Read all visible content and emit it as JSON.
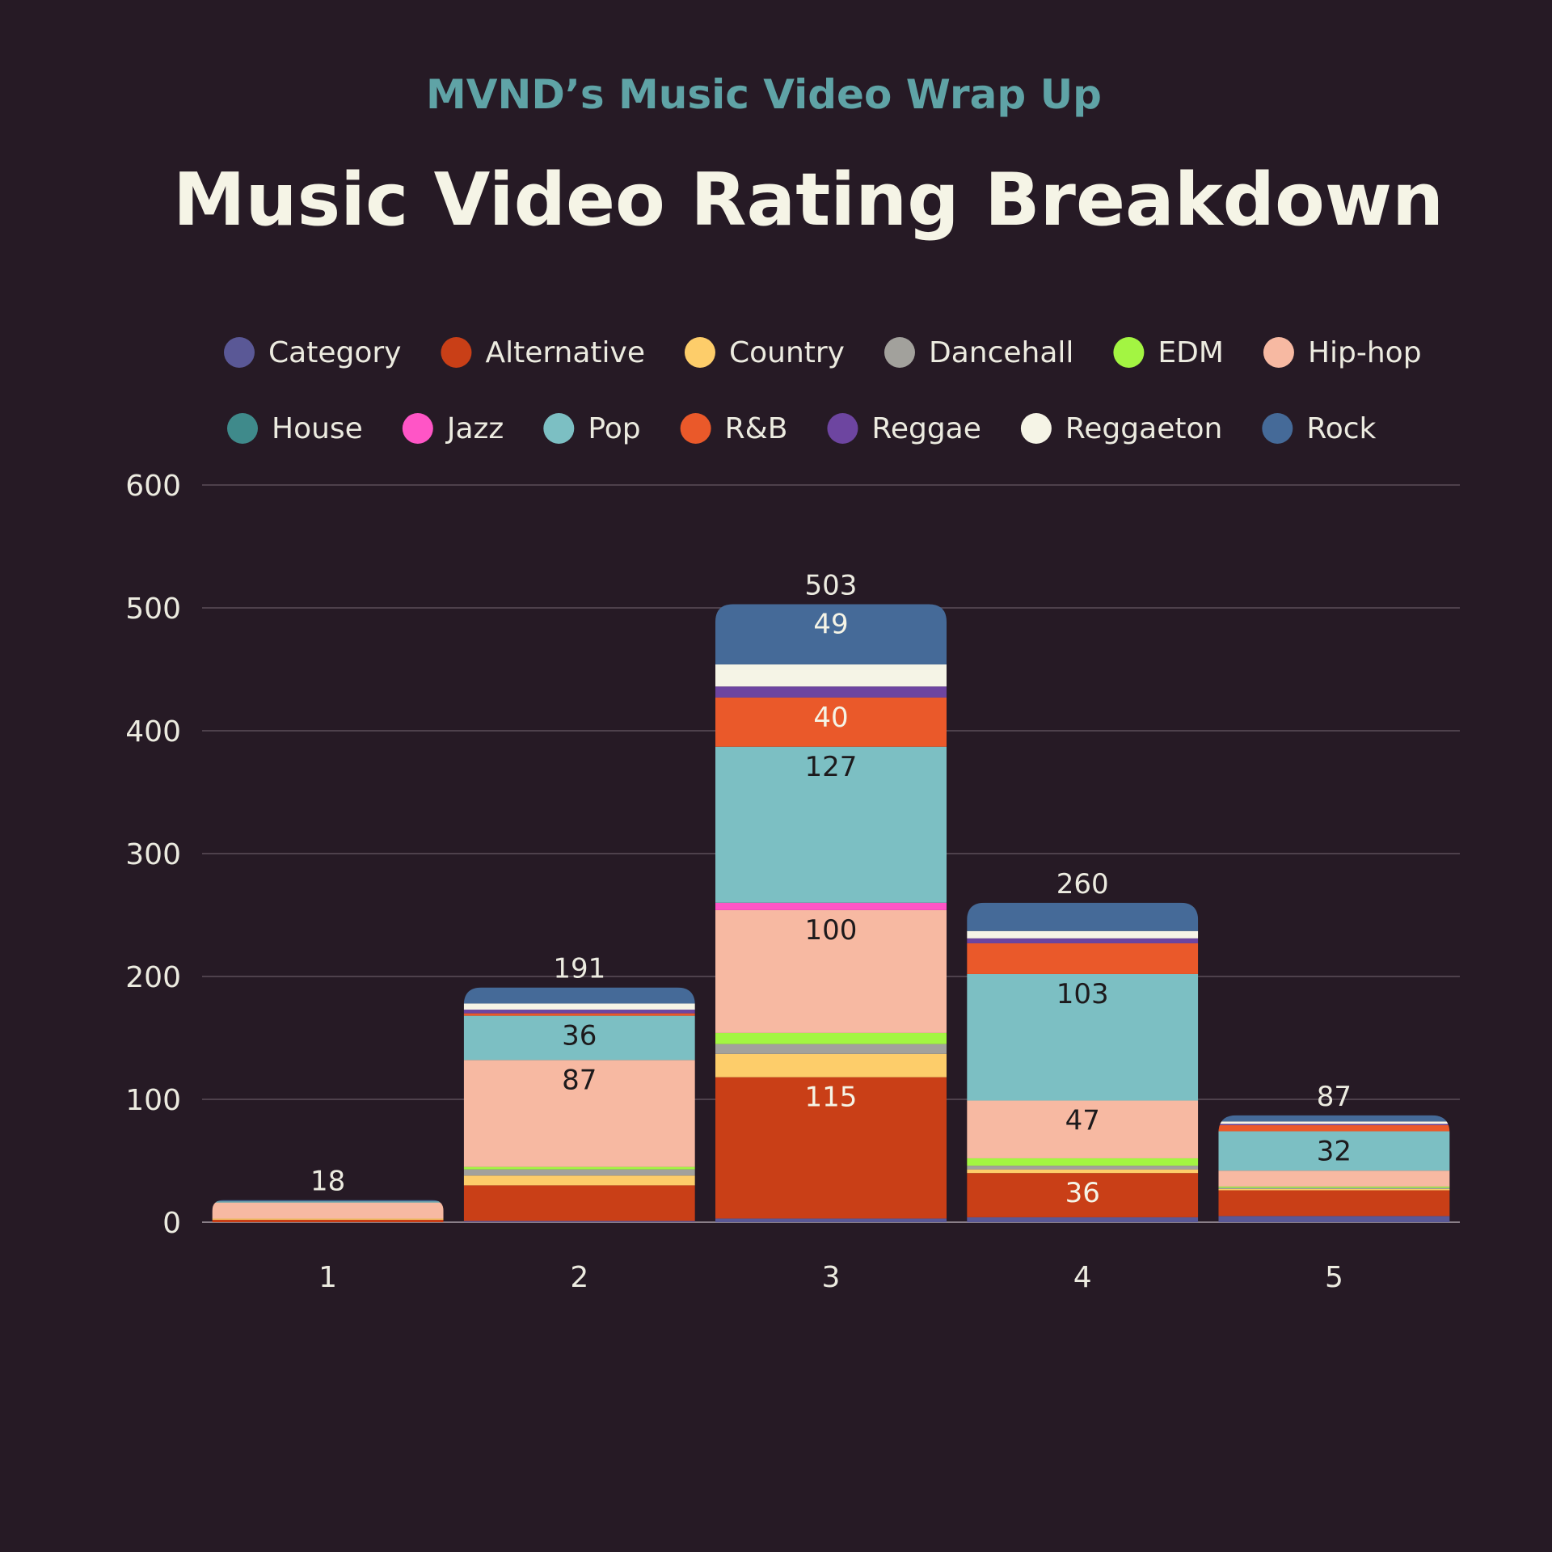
{
  "subtitle": "MVND’s Music Video Wrap Up",
  "title": "Music Video Rating Breakdown",
  "colors": {
    "background": "#261a25",
    "subtitle": "#5fa3a6",
    "title": "#f5f4e6",
    "axis_text": "#ecebe0",
    "grid": "#5b4e5a"
  },
  "chart_data": {
    "type": "bar",
    "stacked": true,
    "title": "Music Video Rating Breakdown",
    "xlabel": "",
    "ylabel": "",
    "ylim": [
      0,
      600
    ],
    "yticks": [
      "0",
      "100",
      "200",
      "300",
      "400",
      "500",
      "600"
    ],
    "grid": true,
    "legend_position": "top",
    "categories": [
      "1",
      "2",
      "3",
      "4",
      "5"
    ],
    "totals": [
      "18",
      "191",
      "503",
      "260",
      "87"
    ],
    "series": [
      {
        "name": "Category",
        "color": "#5a5896",
        "values": [
          0,
          1,
          3,
          4,
          5
        ],
        "labels": [
          "",
          "",
          "",
          "",
          ""
        ]
      },
      {
        "name": "Alternative",
        "color": "#c93f17",
        "values": [
          2,
          29,
          115,
          36,
          21
        ],
        "labels": [
          "",
          "",
          "115",
          "36",
          ""
        ]
      },
      {
        "name": "Country",
        "color": "#fdcd6a",
        "values": [
          1,
          8,
          19,
          3,
          1
        ],
        "labels": [
          "",
          "",
          "",
          "",
          ""
        ]
      },
      {
        "name": "Dancehall",
        "color": "#a2a19c",
        "values": [
          0,
          5,
          8,
          3,
          1
        ],
        "labels": [
          "",
          "",
          "",
          "",
          ""
        ]
      },
      {
        "name": "EDM",
        "color": "#a3f542",
        "values": [
          0,
          2,
          9,
          6,
          1
        ],
        "labels": [
          "",
          "",
          "",
          "",
          ""
        ]
      },
      {
        "name": "Hip-hop",
        "color": "#f7b9a2",
        "values": [
          13,
          87,
          100,
          47,
          13
        ],
        "labels": [
          "",
          "87",
          "100",
          "47",
          ""
        ]
      },
      {
        "name": "House",
        "color": "#3f8a8b",
        "values": [
          0,
          0,
          0,
          0,
          0
        ],
        "labels": [
          "",
          "",
          "",
          "",
          ""
        ]
      },
      {
        "name": "Jazz",
        "color": "#ff55c6",
        "values": [
          0,
          0,
          6,
          0,
          0
        ],
        "labels": [
          "",
          "",
          "",
          "",
          ""
        ]
      },
      {
        "name": "Pop",
        "color": "#7cbfc3",
        "values": [
          1,
          36,
          127,
          103,
          32
        ],
        "labels": [
          "",
          "36",
          "127",
          "103",
          "32"
        ]
      },
      {
        "name": "R&B",
        "color": "#ea592a",
        "values": [
          0,
          2,
          40,
          25,
          5
        ],
        "labels": [
          "",
          "",
          "40",
          "",
          ""
        ]
      },
      {
        "name": "Reggae",
        "color": "#6d45a0",
        "values": [
          0,
          3,
          9,
          4,
          1
        ],
        "labels": [
          "",
          "",
          "",
          "",
          ""
        ]
      },
      {
        "name": "Reggaeton",
        "color": "#f5f4e6",
        "values": [
          0,
          5,
          18,
          6,
          2
        ],
        "labels": [
          "",
          "",
          "",
          "",
          ""
        ]
      },
      {
        "name": "Rock",
        "color": "#456a98",
        "values": [
          1,
          13,
          49,
          23,
          5
        ],
        "labels": [
          "",
          "",
          "49",
          "",
          ""
        ]
      }
    ]
  }
}
